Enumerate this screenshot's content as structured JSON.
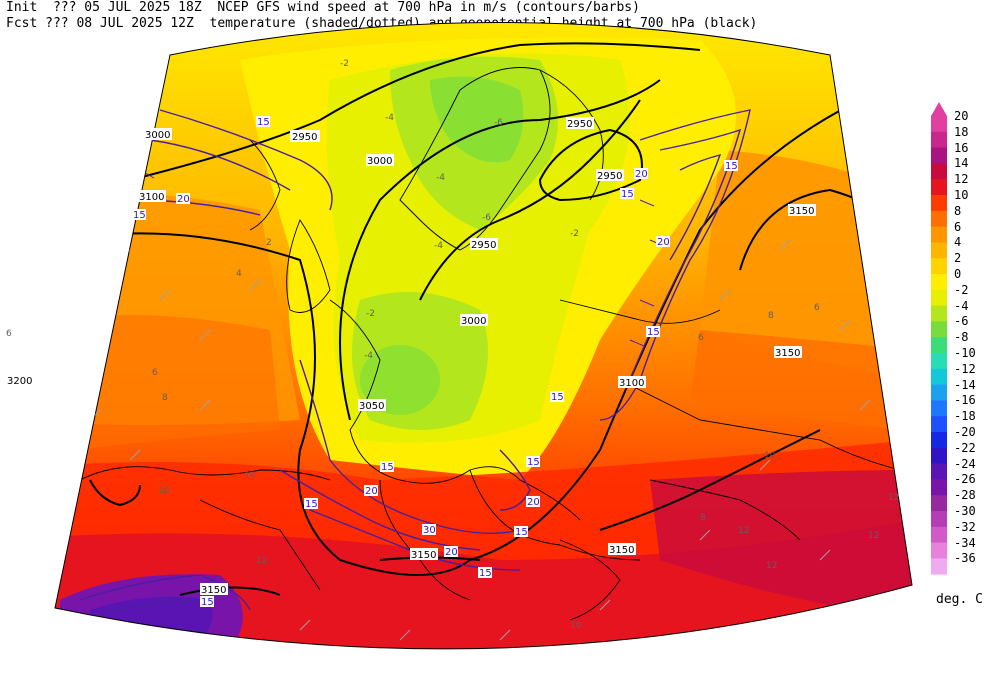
{
  "header": {
    "line1": "Init  ??? 05 JUL 2025 18Z  NCEP GFS wind speed at 700 hPa in m/s (contours/barbs)",
    "line2": "Fcst ??? 08 JUL 2025 12Z  temperature (shaded/dotted) and geopotential height at 700 hPa (black)"
  },
  "colorbar": {
    "units": "deg. C",
    "levels": [
      "20",
      "18",
      "16",
      "14",
      "12",
      "10",
      "8",
      "6",
      "4",
      "2",
      "0",
      "-2",
      "-4",
      "-6",
      "-8",
      "-10",
      "-12",
      "-14",
      "-16",
      "-18",
      "-20",
      "-22",
      "-24",
      "-26",
      "-28",
      "-30",
      "-32",
      "-34",
      "-36"
    ],
    "colors": [
      "#e040a0",
      "#c8288c",
      "#aa1480",
      "#c80a3c",
      "#e6141e",
      "#ff3c00",
      "#ff6e00",
      "#ff9600",
      "#ffb400",
      "#ffd200",
      "#ffee00",
      "#e6f000",
      "#b4e61e",
      "#78dc3c",
      "#3cdc78",
      "#28dcb4",
      "#14c8dc",
      "#1ea0f0",
      "#1e78ff",
      "#1e50ff",
      "#1428e6",
      "#3214c8",
      "#5a14b4",
      "#7814aa",
      "#9628a0",
      "#b43cb4",
      "#d25ac8",
      "#e682dc",
      "#f0aaf0"
    ]
  },
  "map_labels": {
    "heights": [
      "2950",
      "3000",
      "3000",
      "3100",
      "3200",
      "3050",
      "3000",
      "2950",
      "2950",
      "2950",
      "3150",
      "3150",
      "3100",
      "3150",
      "3150",
      "3150"
    ],
    "wind": [
      "15",
      "20",
      "15",
      "20",
      "15",
      "15",
      "20",
      "15",
      "15",
      "15",
      "15",
      "20",
      "30",
      "20",
      "15",
      "20",
      "15",
      "15",
      "15"
    ],
    "temp": [
      "-2",
      "-4",
      "-4",
      "-2",
      "2",
      "4",
      "6",
      "6",
      "8",
      "8",
      "10",
      "10",
      "10",
      "12",
      "12",
      "12",
      "12",
      "12",
      "10",
      "-4",
      "-4",
      "-2",
      "-6",
      "-6",
      "8",
      "6",
      "6"
    ]
  }
}
